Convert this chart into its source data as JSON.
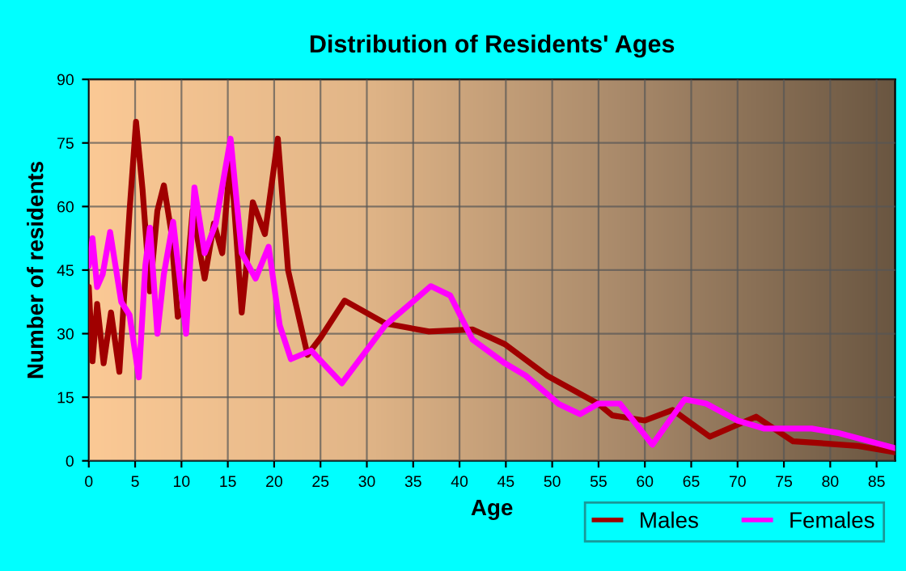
{
  "chart_data": {
    "type": "line",
    "title": "Distribution of Residents' Ages",
    "xlabel": "Age",
    "ylabel": "Number of residents",
    "xlim": [
      0,
      87
    ],
    "xticks": [
      0,
      5,
      10,
      15,
      20,
      25,
      30,
      35,
      40,
      45,
      50,
      55,
      60,
      65,
      70,
      75,
      80,
      85
    ],
    "ylim": [
      0,
      90
    ],
    "yticks": [
      0,
      15,
      30,
      45,
      60,
      75,
      90
    ],
    "grid": true,
    "legend": "bottom right",
    "marker": "none",
    "line_style": "solid",
    "series": [
      {
        "name": "Males",
        "color": "#a00000",
        "x": [
          0,
          0.4,
          0.9,
          1.6,
          2.4,
          3.3,
          4.4,
          5.1,
          5.8,
          6.6,
          7.4,
          8.1,
          8.9,
          9.6,
          10.3,
          11.2,
          12.5,
          13.5,
          14.4,
          15.3,
          16.5,
          17.7,
          19,
          20.4,
          21.5,
          23.6,
          25,
          27.6,
          32,
          36.7,
          41.4,
          44.9,
          49.5,
          55,
          56.5,
          60,
          63,
          67,
          72,
          76,
          80,
          83,
          87
        ],
        "values": [
          41,
          23.5,
          37,
          23,
          35,
          21,
          59,
          80,
          64,
          40,
          59,
          65,
          54,
          34,
          36,
          59,
          43,
          56,
          49,
          72,
          35,
          61,
          53.5,
          76,
          45,
          25,
          29,
          37.8,
          32.4,
          30.5,
          31,
          27.5,
          20,
          13.4,
          10.7,
          9.5,
          12,
          5.7,
          10.4,
          4.6,
          4,
          3.5,
          2
        ]
      },
      {
        "name": "Females",
        "color": "#ff00ff",
        "x": [
          0,
          0.4,
          0.9,
          1.5,
          2.3,
          3.5,
          4.4,
          5.4,
          6.1,
          6.6,
          7.4,
          8.1,
          9.1,
          10.5,
          11.4,
          12.5,
          13.7,
          15.3,
          16.5,
          18,
          19.4,
          20.6,
          21.8,
          24,
          27.3,
          32,
          36.9,
          39,
          41.4,
          44.9,
          47.2,
          50.7,
          53,
          55,
          57.3,
          60.8,
          64.3,
          66.6,
          70,
          72.9,
          78,
          81,
          87
        ],
        "values": [
          46,
          52.5,
          41,
          44,
          54,
          37.5,
          34.4,
          19.7,
          46,
          55,
          30,
          44,
          56.4,
          30,
          64.5,
          49,
          56,
          76,
          49,
          43,
          50.5,
          32,
          24,
          26,
          18.3,
          32,
          41.2,
          39,
          28.6,
          23,
          20,
          13.4,
          11,
          13.5,
          13.5,
          3.8,
          14.5,
          13.5,
          9.5,
          7.6,
          7.6,
          6.5,
          3
        ]
      }
    ]
  }
}
